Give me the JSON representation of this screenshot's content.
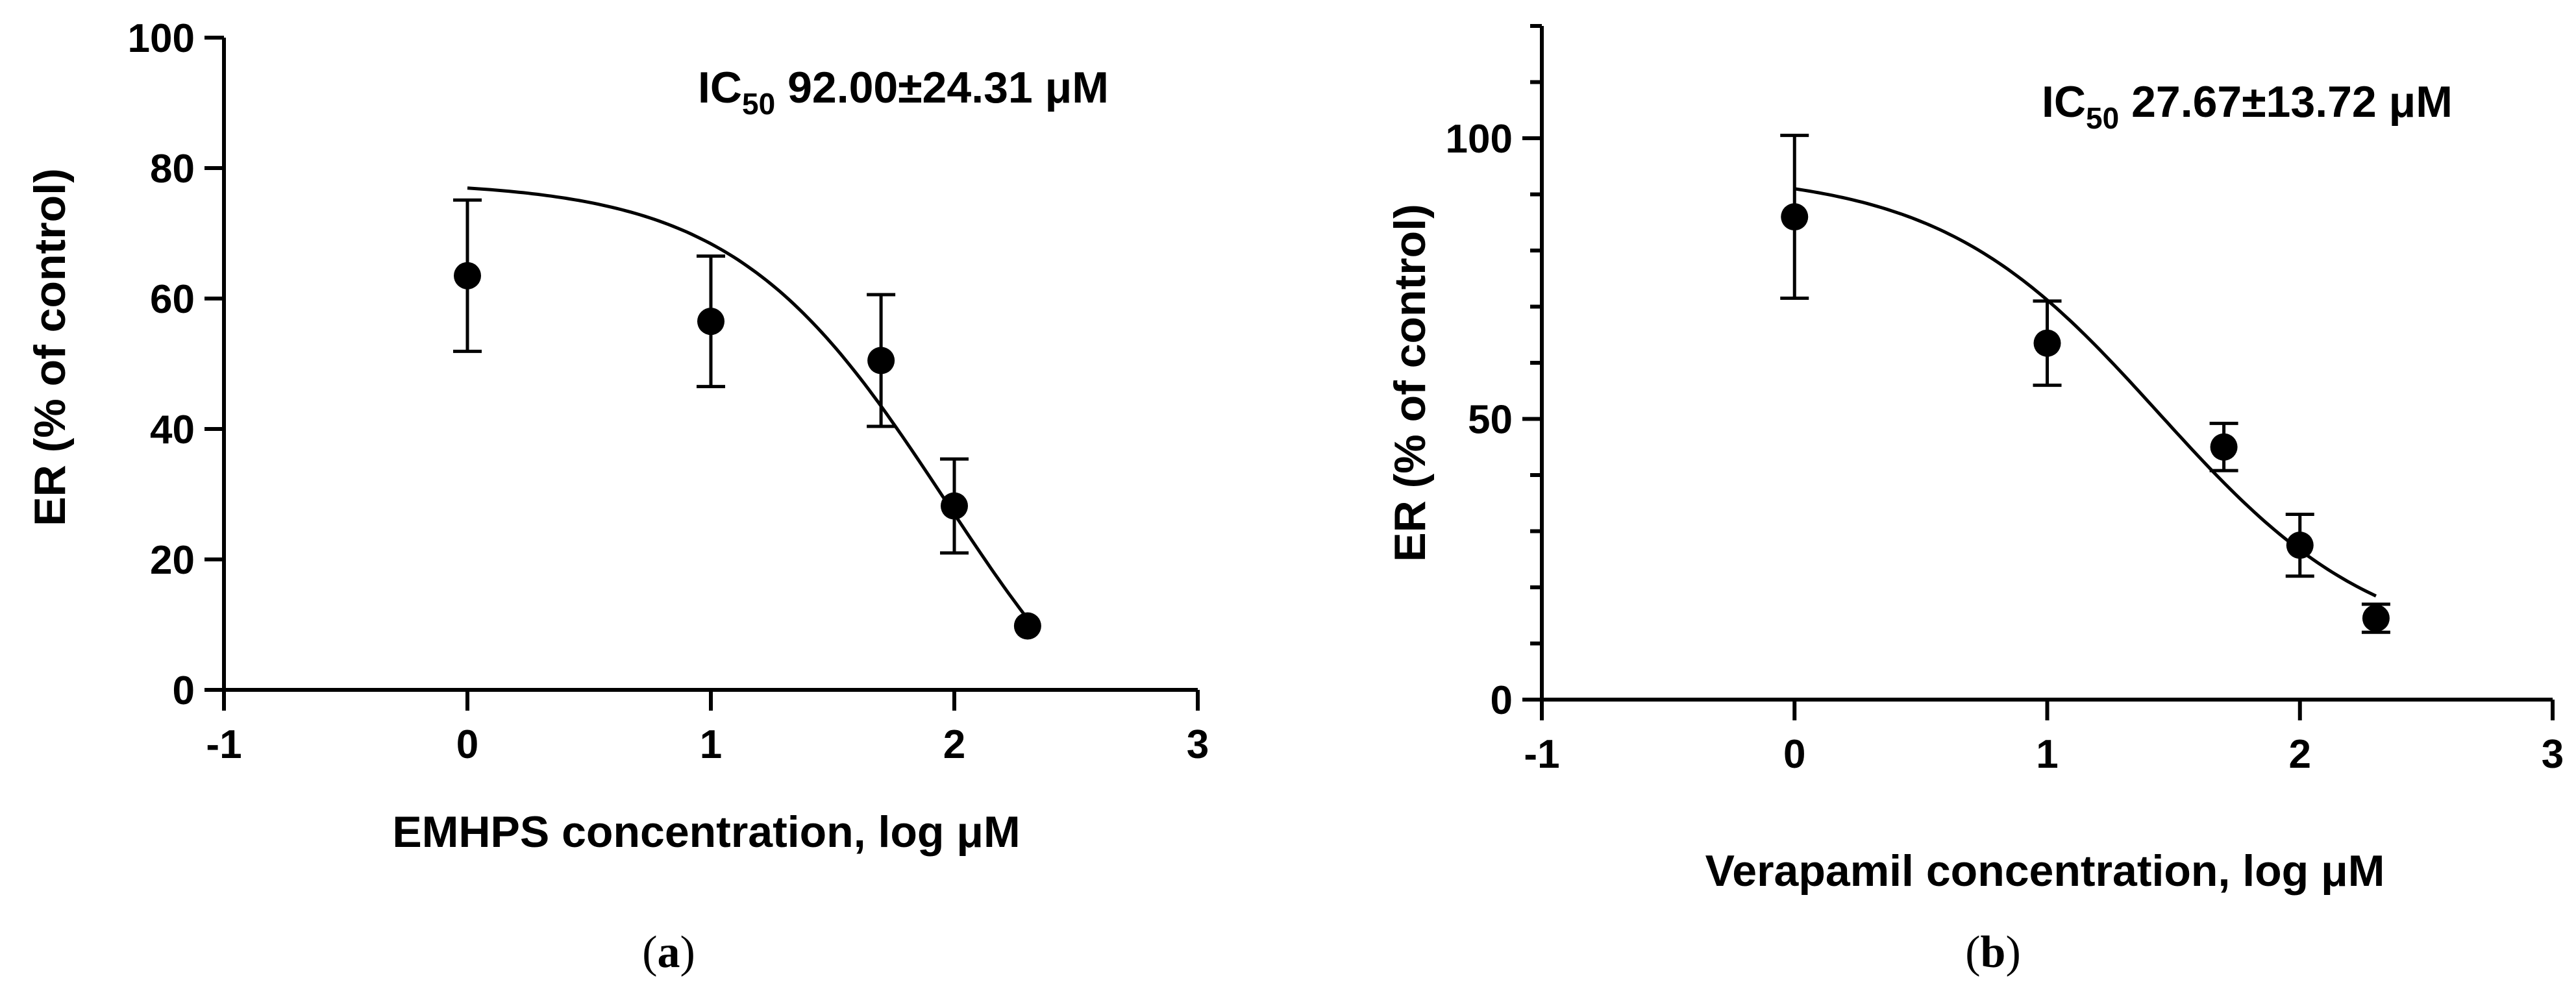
{
  "chart_data": [
    {
      "type": "scatter",
      "panel": "a",
      "caption_open": "(",
      "caption_letter": "a",
      "caption_close": ")",
      "xlabel": "EMHPS concentration, log μM",
      "ylabel": "ER (% of control)",
      "xlim": [
        -1,
        3
      ],
      "ylim": [
        0,
        100
      ],
      "xticks": [
        -1,
        0,
        1,
        2,
        3
      ],
      "xtick_labels": [
        "-1",
        "0",
        "1",
        "2",
        "3"
      ],
      "yticks": [
        0,
        20,
        40,
        60,
        80,
        100
      ],
      "ytick_labels": [
        "0",
        "20",
        "40",
        "60",
        "80",
        "100"
      ],
      "minor_yticks": [],
      "annotation": {
        "prefix": "IC",
        "subscript": "50",
        "value": " 92.00±24.31 μM"
      },
      "series": [
        {
          "name": "EMHPS",
          "x": [
            0,
            1,
            1.699,
            2,
            2.301
          ],
          "y": [
            63.5,
            56.5,
            50.5,
            28.2,
            9.8
          ],
          "error": [
            11.6,
            10.0,
            10.1,
            7.2,
            0
          ]
        }
      ],
      "fit_curve": {
        "model": "4PL",
        "top": 78,
        "bottom": -20,
        "logIC50": 1.964,
        "hill": 1.0,
        "x_from": 0,
        "x_to": 2.301
      }
    },
    {
      "type": "scatter",
      "panel": "b",
      "caption_open": "(",
      "caption_letter": "b",
      "caption_close": ")",
      "xlabel": "Verapamil concentration, log μM",
      "ylabel": "ER (% of control)",
      "xlim": [
        -1,
        3
      ],
      "ylim": [
        0,
        120
      ],
      "xticks": [
        -1,
        0,
        1,
        2,
        3
      ],
      "xtick_labels": [
        "-1",
        "0",
        "1",
        "2",
        "3"
      ],
      "yticks": [
        0,
        50,
        100
      ],
      "ytick_labels": [
        "0",
        "50",
        "100"
      ],
      "minor_yticks": [
        10,
        20,
        30,
        40,
        60,
        70,
        80,
        90,
        110,
        120
      ],
      "annotation": {
        "prefix": "IC",
        "subscript": "50",
        "value": " 27.67±13.72 μM"
      },
      "series": [
        {
          "name": "Verapamil",
          "x": [
            0,
            1,
            1.699,
            2,
            2.301
          ],
          "y": [
            86,
            63.5,
            45,
            27.5,
            14.5
          ],
          "error": [
            14.5,
            7.5,
            4.2,
            5.5,
            2.5
          ]
        }
      ],
      "fit_curve": {
        "model": "4PL",
        "top": 94,
        "bottom": 8,
        "logIC50": 1.442,
        "hill": 1.0,
        "x_from": 0,
        "x_to": 2.301
      }
    }
  ]
}
